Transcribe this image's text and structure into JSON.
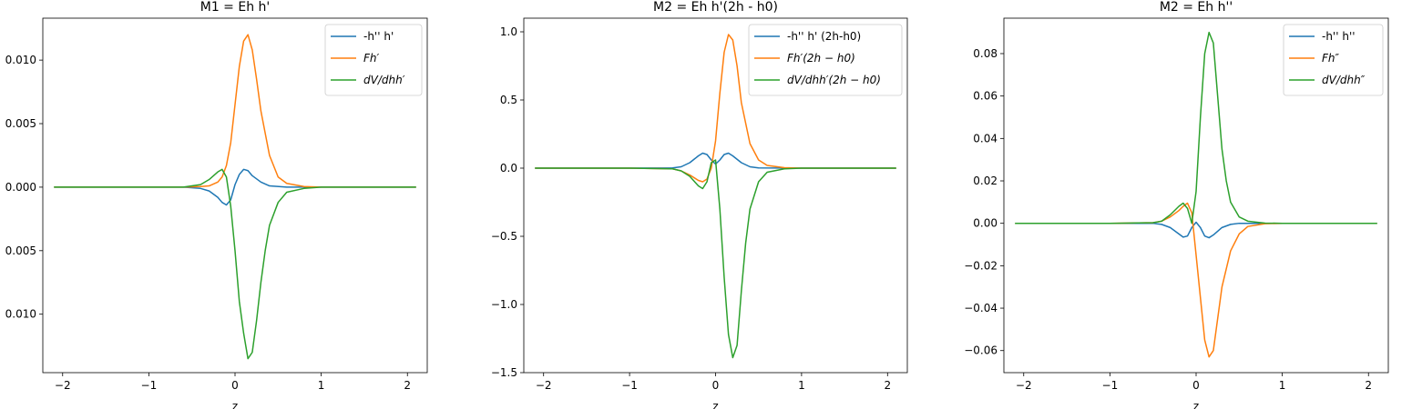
{
  "colors": {
    "blue": "#1f77b4",
    "orange": "#ff7f0e",
    "green": "#2ca02c"
  },
  "chart_data": [
    {
      "type": "line",
      "title": "M1 = Eh h'",
      "xlabel": "z",
      "ylabel": "",
      "xlim": [
        -2.23,
        2.23
      ],
      "ylim": [
        -0.0146,
        0.0133
      ],
      "xticks": [
        -2,
        -1,
        0,
        1,
        2
      ],
      "xtick_labels": [
        "−2",
        "−1",
        "0",
        "1",
        "2"
      ],
      "yticks": [
        -0.01,
        -0.005,
        0.0,
        0.005,
        0.01
      ],
      "ytick_labels": [
        "0.010",
        "0.005",
        "0.000",
        "0.005",
        "0.010"
      ],
      "legend": "top-right",
      "series": [
        {
          "name": "-h'' h'",
          "color": "#1f77b4",
          "x": [
            -2.1,
            -1.0,
            -0.6,
            -0.4,
            -0.3,
            -0.2,
            -0.15,
            -0.1,
            -0.05,
            0.0,
            0.05,
            0.1,
            0.15,
            0.2,
            0.3,
            0.4,
            0.6,
            1.0,
            2.1
          ],
          "y": [
            0,
            0,
            0,
            -0.0001,
            -0.0003,
            -0.0008,
            -0.0012,
            -0.0014,
            -0.001,
            0.0002,
            0.001,
            0.0014,
            0.0013,
            0.0009,
            0.0004,
            0.0001,
            0,
            0,
            0
          ]
        },
        {
          "name": "Fh′",
          "color": "#ff7f0e",
          "x": [
            -2.1,
            -1.0,
            -0.6,
            -0.4,
            -0.3,
            -0.2,
            -0.15,
            -0.1,
            -0.05,
            0.0,
            0.05,
            0.1,
            0.15,
            0.2,
            0.25,
            0.3,
            0.4,
            0.5,
            0.6,
            0.8,
            1.0,
            2.1
          ],
          "y": [
            0,
            0,
            0,
            5e-05,
            0.0001,
            0.0004,
            0.0008,
            0.0017,
            0.0035,
            0.0065,
            0.0095,
            0.0115,
            0.012,
            0.0108,
            0.0085,
            0.006,
            0.0025,
            0.0008,
            0.0003,
            5e-05,
            0,
            0
          ]
        },
        {
          "name": "dV/dhh′",
          "color": "#2ca02c",
          "x": [
            -2.1,
            -1.0,
            -0.6,
            -0.4,
            -0.3,
            -0.2,
            -0.15,
            -0.1,
            -0.05,
            0.0,
            0.05,
            0.1,
            0.15,
            0.2,
            0.25,
            0.3,
            0.35,
            0.4,
            0.5,
            0.6,
            0.8,
            1.0,
            2.1
          ],
          "y": [
            0,
            0,
            0,
            0.0002,
            0.0006,
            0.0012,
            0.0014,
            0.0008,
            -0.0015,
            -0.005,
            -0.009,
            -0.0115,
            -0.0135,
            -0.013,
            -0.0105,
            -0.0075,
            -0.005,
            -0.003,
            -0.0012,
            -0.0004,
            -0.0001,
            0,
            0
          ]
        }
      ]
    },
    {
      "type": "line",
      "title": "M2 = Eh h'(2h - h0)",
      "xlabel": "z",
      "ylabel": "",
      "xlim": [
        -2.23,
        2.23
      ],
      "ylim": [
        -1.5,
        1.1
      ],
      "xticks": [
        -2,
        -1,
        0,
        1,
        2
      ],
      "xtick_labels": [
        "−2",
        "−1",
        "0",
        "1",
        "2"
      ],
      "yticks": [
        -1.5,
        -1.0,
        -0.5,
        0.0,
        0.5,
        1.0
      ],
      "ytick_labels": [
        "−1.5",
        "−1.0",
        "−0.5",
        "0.0",
        "0.5",
        "1.0"
      ],
      "legend": "top-right",
      "series": [
        {
          "name": "-h'' h' (2h-h0)",
          "color": "#1f77b4",
          "x": [
            -2.1,
            -1.0,
            -0.5,
            -0.4,
            -0.3,
            -0.2,
            -0.15,
            -0.1,
            -0.05,
            0.0,
            0.05,
            0.1,
            0.15,
            0.2,
            0.3,
            0.4,
            0.5,
            1.0,
            2.1
          ],
          "y": [
            0,
            0,
            0.002,
            0.01,
            0.04,
            0.09,
            0.11,
            0.1,
            0.06,
            0.03,
            0.06,
            0.1,
            0.11,
            0.09,
            0.04,
            0.01,
            0.002,
            0,
            0
          ]
        },
        {
          "name": "Fh′(2h − h0)",
          "color": "#ff7f0e",
          "x": [
            -2.1,
            -1.0,
            -0.5,
            -0.4,
            -0.3,
            -0.2,
            -0.15,
            -0.1,
            -0.05,
            0.0,
            0.05,
            0.1,
            0.15,
            0.2,
            0.25,
            0.3,
            0.4,
            0.5,
            0.6,
            0.8,
            1.0,
            2.1
          ],
          "y": [
            0,
            0,
            -0.005,
            -0.02,
            -0.05,
            -0.09,
            -0.1,
            -0.08,
            0.0,
            0.2,
            0.55,
            0.85,
            0.98,
            0.94,
            0.75,
            0.48,
            0.18,
            0.06,
            0.02,
            0.003,
            0,
            0
          ]
        },
        {
          "name": "dV/dhh′(2h − h0)",
          "color": "#2ca02c",
          "x": [
            -2.1,
            -1.0,
            -0.5,
            -0.4,
            -0.3,
            -0.2,
            -0.15,
            -0.1,
            -0.05,
            0.0,
            0.05,
            0.1,
            0.15,
            0.2,
            0.25,
            0.3,
            0.35,
            0.4,
            0.5,
            0.6,
            0.8,
            1.0,
            2.1
          ],
          "y": [
            0,
            0,
            -0.005,
            -0.02,
            -0.06,
            -0.13,
            -0.15,
            -0.1,
            0.04,
            0.06,
            -0.3,
            -0.8,
            -1.22,
            -1.39,
            -1.3,
            -0.9,
            -0.55,
            -0.3,
            -0.1,
            -0.03,
            -0.005,
            0,
            0
          ]
        }
      ]
    },
    {
      "type": "line",
      "title": "M2 = Eh h''",
      "xlabel": "z",
      "ylabel": "",
      "xlim": [
        -2.23,
        2.23
      ],
      "ylim": [
        -0.0704,
        0.0967
      ],
      "xticks": [
        -2,
        -1,
        0,
        1,
        2
      ],
      "xtick_labels": [
        "−2",
        "−1",
        "0",
        "1",
        "2"
      ],
      "yticks": [
        -0.06,
        -0.04,
        -0.02,
        0.0,
        0.02,
        0.04,
        0.06,
        0.08
      ],
      "ytick_labels": [
        "−0.06",
        "−0.04",
        "−0.02",
        "0.00",
        "0.02",
        "0.04",
        "0.06",
        "0.08"
      ],
      "legend": "top-right",
      "series": [
        {
          "name": "-h'' h''",
          "color": "#1f77b4",
          "x": [
            -2.1,
            -1.0,
            -0.5,
            -0.4,
            -0.3,
            -0.2,
            -0.15,
            -0.1,
            -0.05,
            0.0,
            0.05,
            0.1,
            0.15,
            0.2,
            0.3,
            0.4,
            0.5,
            1.0,
            2.1
          ],
          "y": [
            0,
            0,
            0,
            -0.0005,
            -0.002,
            -0.005,
            -0.0065,
            -0.006,
            -0.002,
            0.0005,
            -0.002,
            -0.006,
            -0.0068,
            -0.0055,
            -0.002,
            -0.0005,
            0,
            0,
            0
          ]
        },
        {
          "name": "Fh″",
          "color": "#ff7f0e",
          "x": [
            -2.1,
            -1.0,
            -0.5,
            -0.4,
            -0.3,
            -0.2,
            -0.15,
            -0.1,
            -0.05,
            0.0,
            0.05,
            0.1,
            0.15,
            0.2,
            0.25,
            0.3,
            0.4,
            0.5,
            0.6,
            0.8,
            1.0,
            2.1
          ],
          "y": [
            0,
            0,
            0.0003,
            0.001,
            0.003,
            0.006,
            0.008,
            0.0095,
            0.005,
            -0.015,
            -0.035,
            -0.055,
            -0.063,
            -0.06,
            -0.045,
            -0.03,
            -0.013,
            -0.005,
            -0.0015,
            -0.0002,
            0,
            0
          ]
        },
        {
          "name": "dV/dhh″",
          "color": "#2ca02c",
          "x": [
            -2.1,
            -1.0,
            -0.5,
            -0.4,
            -0.3,
            -0.2,
            -0.15,
            -0.1,
            -0.05,
            0.0,
            0.05,
            0.1,
            0.15,
            0.2,
            0.25,
            0.3,
            0.35,
            0.4,
            0.5,
            0.6,
            0.8,
            1.0,
            2.1
          ],
          "y": [
            0,
            0,
            0.0003,
            0.001,
            0.004,
            0.008,
            0.0095,
            0.007,
            0.0,
            0.015,
            0.05,
            0.08,
            0.09,
            0.085,
            0.06,
            0.035,
            0.02,
            0.01,
            0.003,
            0.001,
            0.0001,
            0,
            0
          ]
        }
      ]
    }
  ]
}
